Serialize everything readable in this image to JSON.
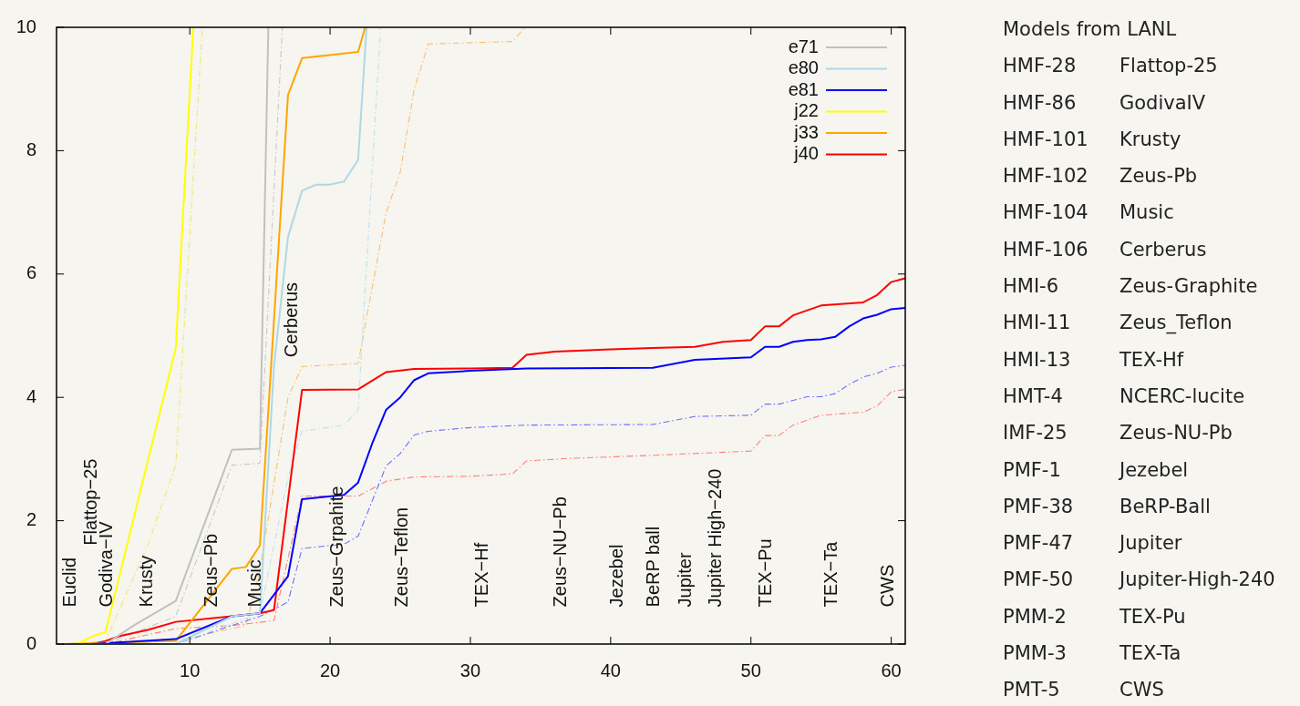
{
  "chart_data": {
    "type": "line",
    "legend": "top right",
    "xlim": [
      0.5,
      61
    ],
    "xticks": [
      10,
      20,
      30,
      40,
      50,
      60
    ],
    "ylim": [
      0,
      10
    ],
    "yticks": [
      0,
      2,
      4,
      6,
      8,
      10
    ],
    "series": [
      {
        "name": "e71",
        "color": "#c0c0c0",
        "x": [
          1,
          4,
          6,
          9,
          13,
          15,
          15.6
        ],
        "values": [
          0,
          0,
          0.3,
          0.7,
          3.15,
          3.17,
          10
        ]
      },
      {
        "name": "e80",
        "color": "#add8e6",
        "x": [
          1,
          9,
          13,
          15,
          16,
          17,
          18,
          19,
          20,
          21,
          22,
          22.6
        ],
        "values": [
          0,
          0,
          0.45,
          0.5,
          4.5,
          6.6,
          7.35,
          7.45,
          7.45,
          7.5,
          7.85,
          10
        ]
      },
      {
        "name": "e81",
        "color": "#0000ff",
        "x": [
          1,
          3,
          9,
          13,
          15,
          17,
          18,
          21,
          22,
          23,
          24,
          25,
          26,
          27,
          30,
          34,
          43,
          46,
          50,
          51,
          52,
          53,
          54,
          55,
          56,
          57,
          58,
          59,
          60,
          61
        ],
        "values": [
          0,
          0,
          0.08,
          0.45,
          0.5,
          1.1,
          2.35,
          2.42,
          2.62,
          3.25,
          3.8,
          4.0,
          4.28,
          4.39,
          4.43,
          4.47,
          4.48,
          4.61,
          4.65,
          4.82,
          4.82,
          4.9,
          4.93,
          4.94,
          4.98,
          5.15,
          5.28,
          5.34,
          5.43,
          5.45
        ]
      },
      {
        "name": "j22",
        "color": "#ffff00",
        "x": [
          1,
          2,
          3,
          4,
          9,
          10.25
        ],
        "values": [
          0,
          0,
          0.12,
          0.2,
          4.8,
          10
        ]
      },
      {
        "name": "j33",
        "color": "#ffa500",
        "x": [
          1,
          9,
          13,
          14,
          15,
          17,
          18,
          22,
          22.5
        ],
        "values": [
          0,
          0.05,
          1.22,
          1.25,
          1.6,
          8.9,
          9.5,
          9.6,
          10
        ]
      },
      {
        "name": "j40",
        "color": "#ff0000",
        "x": [
          1,
          3,
          4,
          5,
          7,
          9,
          13,
          15,
          16,
          18,
          22,
          24,
          26,
          30,
          33,
          34,
          36,
          40,
          43,
          46,
          48,
          50,
          51,
          52,
          53,
          55,
          58,
          59,
          60,
          61
        ],
        "values": [
          0,
          0,
          0.05,
          0.13,
          0.23,
          0.36,
          0.45,
          0.5,
          0.55,
          4.12,
          4.13,
          4.41,
          4.46,
          4.47,
          4.48,
          4.69,
          4.74,
          4.78,
          4.8,
          4.82,
          4.9,
          4.93,
          5.15,
          5.15,
          5.33,
          5.49,
          5.54,
          5.66,
          5.87,
          5.93
        ]
      },
      {
        "color": "#c8c8c8",
        "line_style": "dashed",
        "x": [
          1,
          4,
          9,
          13,
          15,
          16.6
        ],
        "values": [
          0,
          0,
          0.45,
          2.9,
          2.93,
          10
        ]
      },
      {
        "color": "#bfe3ee",
        "line_style": "dashed",
        "x": [
          1,
          9,
          15,
          17,
          18,
          21,
          22,
          23.6
        ],
        "values": [
          0,
          0,
          0.5,
          2.7,
          3.45,
          3.55,
          3.8,
          10
        ]
      },
      {
        "color": "#6f6fff",
        "line_style": "dashed",
        "x": [
          1,
          9,
          15,
          17,
          18,
          21,
          22,
          24,
          25,
          26,
          27,
          30,
          34,
          43,
          46,
          50,
          51,
          52,
          53,
          54,
          55,
          56,
          57,
          58,
          59,
          60,
          61
        ],
        "values": [
          0,
          0,
          0.45,
          0.68,
          1.55,
          1.62,
          1.75,
          2.89,
          3.09,
          3.39,
          3.45,
          3.51,
          3.55,
          3.56,
          3.69,
          3.71,
          3.89,
          3.89,
          3.95,
          4.01,
          4.01,
          4.06,
          4.21,
          4.33,
          4.39,
          4.49,
          4.52
        ]
      },
      {
        "color": "#eeea70",
        "line_style": "dashed",
        "x": [
          1,
          4,
          7,
          9,
          10.9
        ],
        "values": [
          0,
          0.05,
          1.6,
          2.9,
          10
        ]
      },
      {
        "color": "#f8c070",
        "line_style": "dashed",
        "x": [
          1,
          9,
          14,
          15,
          17,
          18,
          22,
          24,
          25,
          26,
          27,
          33,
          33.9
        ],
        "values": [
          0,
          0.05,
          0.3,
          1.2,
          4.0,
          4.5,
          4.55,
          7.0,
          7.65,
          9.0,
          9.73,
          9.77,
          10
        ]
      },
      {
        "color": "#ff7f7f",
        "line_style": "dashed",
        "x": [
          1,
          4,
          9,
          13,
          16,
          18,
          22,
          24,
          26,
          30,
          33,
          34,
          37,
          43,
          50,
          51,
          52,
          53,
          55,
          58,
          59,
          60,
          61
        ],
        "values": [
          0,
          0,
          0.25,
          0.3,
          0.38,
          2.4,
          2.4,
          2.64,
          2.71,
          2.72,
          2.76,
          2.97,
          3.01,
          3.06,
          3.13,
          3.38,
          3.38,
          3.55,
          3.71,
          3.76,
          3.86,
          4.09,
          4.13
        ]
      }
    ],
    "annotations": [
      "Euclid",
      "Flattop−25",
      "Godiva−IV",
      "Krusty",
      "Zeus−Pb",
      "Music",
      "Cerberus",
      "Zeus−Grpahite",
      "Zeus−Teflon",
      "TEX−Hf",
      "Zeus−NU−Pb",
      "Jezebel",
      "BeRP ball",
      "Jupiter",
      "Jupiter High−240",
      "TEX−Pu",
      "TEX−Ta",
      "CWS",
      "Models from LANL",
      "HMF-28",
      "Flattop-25",
      "HMF-86",
      "GodivaIV",
      "HMF-101",
      "Krusty",
      "HMF-102",
      "Zeus-Pb",
      "HMF-104",
      "Music",
      "HMF-106",
      "Cerberus",
      "HMI-6",
      "Zeus-Graphite",
      "HMI-11",
      "Zeus_Teflon",
      "HMI-13",
      "TEX-Hf",
      "HMT-4",
      "NCERC-lucite",
      "IMF-25",
      "Zeus-NU-Pb",
      "PMF-1",
      "Jezebel",
      "PMF-38",
      "BeRP-Ball",
      "PMF-47",
      "Jupiter",
      "PMF-50",
      "Jupiter-High-240",
      "PMM-2",
      "TEX-Pu",
      "PMM-3",
      "TEX-Ta",
      "PMT-5",
      "CWS"
    ]
  }
}
